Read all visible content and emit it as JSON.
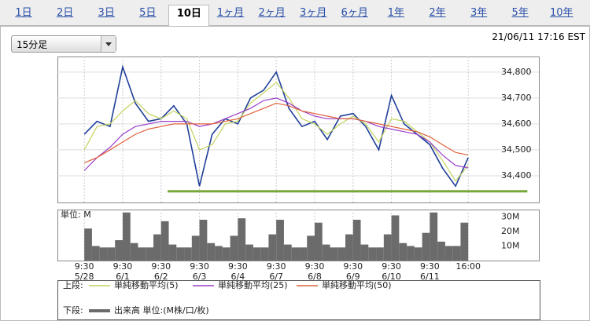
{
  "tabs": [
    "1日",
    "2日",
    "3日",
    "5日",
    "10日",
    "1ヶ月",
    "2ヶ月",
    "3ヶ月",
    "6ヶ月",
    "1年",
    "2年",
    "3年",
    "5年",
    "10年"
  ],
  "active_tab": 4,
  "interval_select": "15分足",
  "timestamp": "21/06/11 17:16 EST",
  "legend": {
    "upper": "上段:",
    "lower": "下段:"
  },
  "chart_data": [
    {
      "type": "line",
      "x": [
        0,
        0.33,
        0.67,
        1,
        1.33,
        1.67,
        2,
        2.33,
        2.67,
        3,
        3.33,
        3.67,
        4,
        4.33,
        4.67,
        5,
        5.33,
        5.67,
        6,
        6.33,
        6.67,
        7,
        7.33,
        7.67,
        8,
        8.33,
        8.67,
        9,
        9.33,
        9.67,
        10
      ],
      "xlim": [
        -0.7,
        11.84
      ],
      "xticks": [
        {
          "value": 0,
          "label": "9:30\n5/28"
        },
        {
          "value": 1,
          "label": "9:30\n6/1"
        },
        {
          "value": 2,
          "label": "9:30\n6/2"
        },
        {
          "value": 3,
          "label": "9:30\n6/3"
        },
        {
          "value": 4,
          "label": "9:30\n6/4"
        },
        {
          "value": 5,
          "label": "9:30\n6/7"
        },
        {
          "value": 6,
          "label": "9:30\n6/8"
        },
        {
          "value": 7,
          "label": "9:30\n6/9"
        },
        {
          "value": 8,
          "label": "9:30\n6/10"
        },
        {
          "value": 9,
          "label": "9:30\n6/11"
        },
        {
          "value": 10,
          "label": "16:00"
        }
      ],
      "ylim": [
        34297,
        34860
      ],
      "yticks": [
        {
          "value": 34400,
          "label": "34,400"
        },
        {
          "value": 34500,
          "label": "34,500"
        },
        {
          "value": 34600,
          "label": "34,600"
        },
        {
          "value": 34700,
          "label": "34,700"
        },
        {
          "value": 34800,
          "label": "34,800"
        }
      ],
      "grid": true,
      "series": [
        {
          "color": "#1f3f99",
          "values": [
            34560,
            34610,
            34590,
            34820,
            34680,
            34610,
            34620,
            34670,
            34600,
            34360,
            34560,
            34620,
            34600,
            34700,
            34730,
            34800,
            34660,
            34590,
            34610,
            34540,
            34630,
            34640,
            34590,
            34500,
            34710,
            34600,
            34560,
            34520,
            34430,
            34360,
            34470
          ]
        },
        {
          "name": "単純移動平均(5)",
          "color": "#c3d35e",
          "values": [
            34500,
            34590,
            34600,
            34650,
            34690,
            34640,
            34620,
            34650,
            34620,
            34500,
            34520,
            34600,
            34610,
            34680,
            34720,
            34760,
            34700,
            34620,
            34600,
            34560,
            34600,
            34630,
            34600,
            34530,
            34620,
            34610,
            34570,
            34530,
            34460,
            34380,
            34440
          ]
        },
        {
          "name": "単純移動平均(25)",
          "color": "#9a3fc9",
          "values": [
            34420,
            34470,
            34510,
            34560,
            34590,
            34600,
            34610,
            34610,
            34610,
            34590,
            34600,
            34620,
            34640,
            34660,
            34690,
            34700,
            34680,
            34650,
            34630,
            34620,
            34620,
            34620,
            34610,
            34590,
            34580,
            34570,
            34560,
            34530,
            34480,
            34440,
            34430
          ]
        },
        {
          "name": "単純移動平均(50)",
          "color": "#e0603a",
          "values": [
            34450,
            34470,
            34500,
            34530,
            34560,
            34580,
            34590,
            34600,
            34600,
            34600,
            34600,
            34610,
            34620,
            34640,
            34660,
            34680,
            34670,
            34650,
            34640,
            34630,
            34620,
            34620,
            34610,
            34600,
            34590,
            34580,
            34570,
            34550,
            34520,
            34490,
            34480
          ]
        }
      ],
      "hline": {
        "value": 34340,
        "x": [
          2.17,
          11.54
        ],
        "color": "#78a83a"
      }
    },
    {
      "type": "bar",
      "y_unit_label": "単位: M",
      "x": [
        0,
        0.2,
        0.4,
        0.6,
        0.8,
        1,
        1.2,
        1.4,
        1.6,
        1.8,
        2,
        2.2,
        2.4,
        2.6,
        2.8,
        3,
        3.2,
        3.4,
        3.6,
        3.8,
        4,
        4.2,
        4.4,
        4.6,
        4.8,
        5,
        5.2,
        5.4,
        5.6,
        5.8,
        6,
        6.2,
        6.4,
        6.6,
        6.8,
        7,
        7.2,
        7.4,
        7.6,
        7.8,
        8,
        8.2,
        8.4,
        8.6,
        8.8,
        9,
        9.2,
        9.4,
        9.6,
        9.8
      ],
      "xlim": [
        -0.7,
        11.84
      ],
      "ylim": [
        0,
        35
      ],
      "yticks": [
        {
          "value": 10,
          "label": "10M"
        },
        {
          "value": 20,
          "label": "20M"
        },
        {
          "value": 30,
          "label": "30M"
        }
      ],
      "series": [
        {
          "name": "出来高 単位:(M株/口/枚)",
          "color": "#6b6b6b",
          "values": [
            22,
            10,
            9,
            9,
            14,
            33,
            12,
            9,
            9,
            18,
            27,
            11,
            9,
            9,
            17,
            28,
            12,
            10,
            9,
            17,
            29,
            11,
            9,
            9,
            18,
            28,
            11,
            9,
            9,
            17,
            26,
            11,
            9,
            9,
            18,
            28,
            11,
            9,
            9,
            18,
            31,
            12,
            10,
            9,
            19,
            33,
            13,
            10,
            10,
            26
          ]
        }
      ]
    }
  ]
}
